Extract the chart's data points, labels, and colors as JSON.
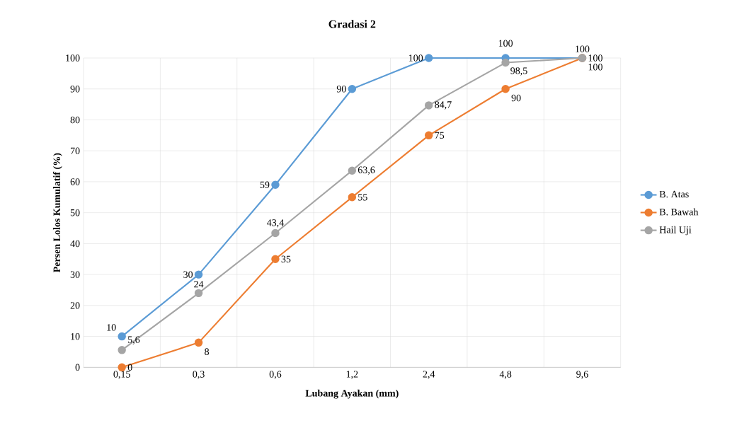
{
  "chart_data": {
    "type": "line",
    "title": "Gradasi 2",
    "xlabel": "Lubang Ayakan (mm)",
    "ylabel": "Persen Lolos Kumulatif (%)",
    "categories": [
      "0,15",
      "0,3",
      "0,6",
      "1,2",
      "2,4",
      "4,8",
      "9,6"
    ],
    "series": [
      {
        "name": "B. Atas",
        "color": "#5b9bd5",
        "values": [
          10,
          30,
          59,
          90,
          100,
          100,
          100
        ],
        "value_labels": [
          "10",
          "30",
          "59",
          "90",
          "100",
          "100",
          "100"
        ]
      },
      {
        "name": "B. Bawah",
        "color": "#ed7d31",
        "values": [
          0,
          8,
          35,
          55,
          75,
          90,
          100
        ],
        "value_labels": [
          "0",
          "8",
          "35",
          "55",
          "75",
          "90",
          "100"
        ]
      },
      {
        "name": "Hail Uji",
        "color": "#a5a5a5",
        "values": [
          5.6,
          24,
          43.4,
          63.6,
          84.7,
          98.5,
          100
        ],
        "value_labels": [
          "5,6",
          "24",
          "43,4",
          "63,6",
          "84,7",
          "98,5",
          "100"
        ]
      }
    ],
    "ylim": [
      0,
      100
    ],
    "yticks": [
      0,
      10,
      20,
      30,
      40,
      50,
      60,
      70,
      80,
      90,
      100
    ],
    "grid": true,
    "legend": "right",
    "marker": "circle",
    "line_style": "solid"
  }
}
